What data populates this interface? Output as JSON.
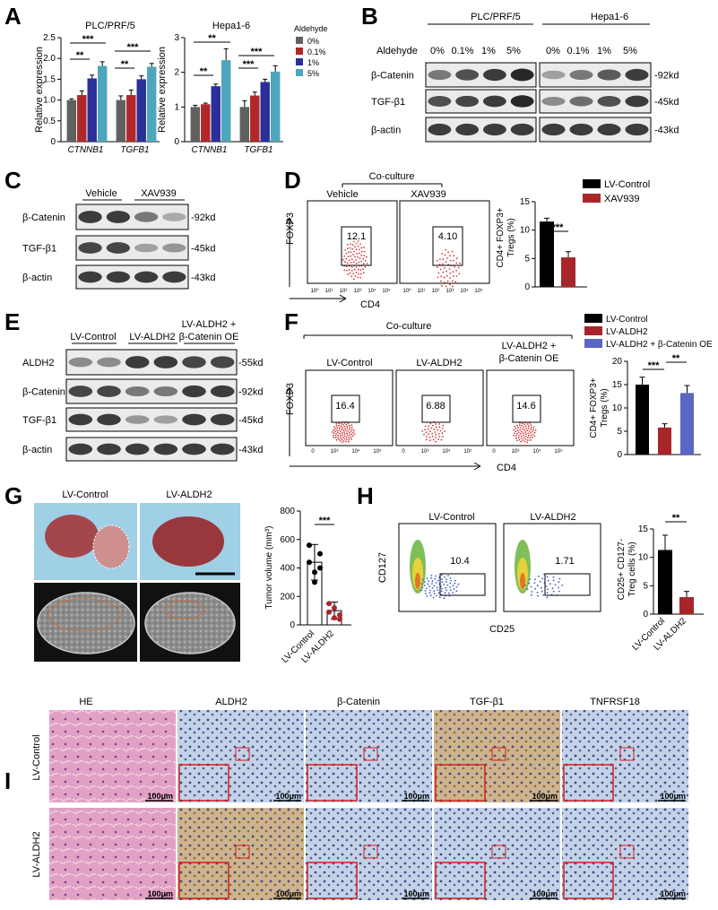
{
  "colors": {
    "gray": "#606060",
    "red": "#b02828",
    "navy": "#2b2f9a",
    "teal": "#4ea6bc",
    "black": "#000000",
    "darkred": "#a8262a",
    "blue": "#5a66c4",
    "sky": "#9fd0e6",
    "tissue": "#a4474c",
    "he_pink": "#e2a1c4",
    "ihc_blue": "#aabedb"
  },
  "panel_letters": [
    "A",
    "B",
    "C",
    "D",
    "E",
    "F",
    "G",
    "H",
    "I"
  ],
  "A": {
    "y_label": "Relative expression",
    "legend_title": "Aldehyde",
    "left_title": "PLC/PRF/5",
    "right_title": "Hepa1-6",
    "categories": [
      "CTNNB1",
      "TGFB1"
    ],
    "y_ticks_left": [
      "0",
      "0.5",
      "1.0",
      "1.5",
      "2.0",
      "2.5"
    ],
    "y_ticks_right": [
      "0",
      "1",
      "2",
      "3"
    ],
    "sig_left": [
      "***",
      "**",
      "***",
      "**"
    ],
    "sig_right": [
      "**",
      "**",
      "***",
      "***"
    ]
  },
  "B": {
    "row_label": "Aldehyde",
    "group1": "PLC/PRF/5",
    "group2": "Hepa1-6",
    "doses": [
      "0%",
      "0.1%",
      "1%",
      "5%"
    ],
    "proteins": [
      "β-Catenin",
      "TGF-β1",
      "β-actin"
    ],
    "sizes": [
      "-92kd",
      "-45kd",
      "-43kd"
    ]
  },
  "C": {
    "groups": [
      "Vehicle",
      "XAV939"
    ],
    "proteins": [
      "β-Catenin",
      "TGF-β1",
      "β-actin"
    ],
    "sizes": [
      "-92kd",
      "-45kd",
      "-43kd"
    ]
  },
  "D": {
    "header": "Co-culture",
    "labels": [
      "Vehicle",
      "XAV939"
    ],
    "gate_values": [
      "12.1",
      "4.10"
    ],
    "y_axis": "FOXP3",
    "x_axis": "CD4",
    "x_ticks": [
      "10⁰",
      "10¹",
      "10²",
      "10³",
      "10⁴",
      "10⁵"
    ],
    "bar_ylabel_line1": "CD4+ FOXP3+",
    "bar_ylabel_line2": "Tregs (%)",
    "bar_y_ticks": [
      "0",
      "5",
      "10",
      "15"
    ],
    "sig": "***",
    "legend": [
      "LV-Control",
      "XAV939"
    ]
  },
  "E": {
    "groups": [
      "LV-Control",
      "LV-ALDH2",
      "LV-ALDH2 +",
      "β-Catenin OE"
    ],
    "proteins": [
      "ALDH2",
      "β-Catenin",
      "TGF-β1",
      "β-actin"
    ],
    "sizes": [
      "-55kd",
      "-92kd",
      "-45kd",
      "-43kd"
    ]
  },
  "F": {
    "header": "Co-culture",
    "labels": [
      "LV-Control",
      "LV-ALDH2",
      "LV-ALDH2 +",
      "β-Catenin OE"
    ],
    "gate_values": [
      "16.4",
      "6.88",
      "14.6"
    ],
    "y_axis": "FOXP3",
    "x_axis": "CD4",
    "x_ticks": [
      "0",
      "10³",
      "10⁴",
      "10⁵"
    ],
    "bar_ylabel_line1": "CD4+ FOXP3+",
    "bar_ylabel_line2": "Tregs (%)",
    "bar_y_ticks": [
      "0",
      "5",
      "10",
      "15",
      "20"
    ],
    "sig": [
      "***",
      "**"
    ],
    "legend": [
      "LV-Control",
      "LV-ALDH2",
      "LV-ALDH2 + β-Catenin OE"
    ]
  },
  "G": {
    "labels": [
      "LV-Control",
      "LV-ALDH2"
    ],
    "ylabel": "Tumor volume (mm³)",
    "y_ticks": [
      "0",
      "200",
      "400",
      "600",
      "800"
    ],
    "sig": "***",
    "x_ticks": [
      "LV-Control",
      "LV-ALDH2"
    ]
  },
  "H": {
    "labels": [
      "LV-Control",
      "LV-ALDH2"
    ],
    "gate_values": [
      "10.4",
      "1.71"
    ],
    "y_axis": "CD127",
    "x_axis": "CD25",
    "bar_ylabel_line1": "CD25+ CD127-",
    "bar_ylabel_line2": "Treg cells (%)",
    "bar_y_ticks": [
      "0",
      "5",
      "10",
      "15"
    ],
    "sig": "**",
    "x_ticks": [
      "LV-Control",
      "LV-ALDH2"
    ]
  },
  "I": {
    "columns": [
      "HE",
      "ALDH2",
      "β-Catenin",
      "TGF-β1",
      "TNFRSF18"
    ],
    "rows": [
      "LV-Control",
      "LV-ALDH2"
    ],
    "scale": "100μm"
  },
  "chart_data": [
    {
      "type": "bar",
      "title": "PLC/PRF/5",
      "ylabel": "Relative expression",
      "categories": [
        "CTNNB1",
        "TGFB1"
      ],
      "ylim": [
        0,
        2.5
      ],
      "legend_title": "Aldehyde",
      "series": [
        {
          "name": "0%",
          "values": [
            1.0,
            1.0
          ],
          "err": [
            0.03,
            0.1
          ]
        },
        {
          "name": "0.1%",
          "values": [
            1.12,
            1.12
          ],
          "err": [
            0.1,
            0.12
          ]
        },
        {
          "name": "1%",
          "values": [
            1.52,
            1.5
          ],
          "err": [
            0.08,
            0.08
          ]
        },
        {
          "name": "5%",
          "values": [
            1.82,
            1.8
          ],
          "err": [
            0.1,
            0.08
          ]
        }
      ]
    },
    {
      "type": "bar",
      "title": "Hepa1-6",
      "ylabel": "Relative expression",
      "categories": [
        "CTNNB1",
        "TGFB1"
      ],
      "ylim": [
        0,
        3
      ],
      "series": [
        {
          "name": "0%",
          "values": [
            1.0,
            1.0
          ],
          "err": [
            0.05,
            0.18
          ]
        },
        {
          "name": "0.1%",
          "values": [
            1.08,
            1.33
          ],
          "err": [
            0.03,
            0.1
          ]
        },
        {
          "name": "1%",
          "values": [
            1.6,
            1.72
          ],
          "err": [
            0.06,
            0.08
          ]
        },
        {
          "name": "5%",
          "values": [
            2.35,
            2.02
          ],
          "err": [
            0.33,
            0.17
          ]
        }
      ]
    },
    {
      "type": "bar",
      "ylabel": "CD4+ FOXP3+ Tregs (%)",
      "categories": [
        "LV-Control",
        "XAV939"
      ],
      "values": [
        11.5,
        5.2
      ],
      "err": [
        0.6,
        1.0
      ],
      "ylim": [
        0,
        15
      ]
    },
    {
      "type": "bar",
      "ylabel": "CD4+ FOXP3+ Tregs (%)",
      "categories": [
        "LV-Control",
        "LV-ALDH2",
        "LV-ALDH2 + β-Catenin OE"
      ],
      "values": [
        15.0,
        5.8,
        13.2
      ],
      "err": [
        1.6,
        0.8,
        1.6
      ],
      "ylim": [
        0,
        20
      ]
    },
    {
      "type": "scatter",
      "ylabel": "Tumor volume (mm³)",
      "categories": [
        "LV-Control",
        "LV-ALDH2"
      ],
      "means": [
        440,
        100
      ],
      "err": [
        125,
        60
      ],
      "points": [
        [
          440,
          370,
          500,
          560,
          300,
          400
        ],
        [
          90,
          50,
          70,
          150,
          120,
          40
        ]
      ],
      "ylim": [
        0,
        800
      ]
    },
    {
      "type": "bar",
      "ylabel": "CD25+ CD127- Treg cells (%)",
      "categories": [
        "LV-Control",
        "LV-ALDH2"
      ],
      "values": [
        11.3,
        3.0
      ],
      "err": [
        2.6,
        1.0
      ],
      "ylim": [
        0,
        15
      ]
    }
  ]
}
